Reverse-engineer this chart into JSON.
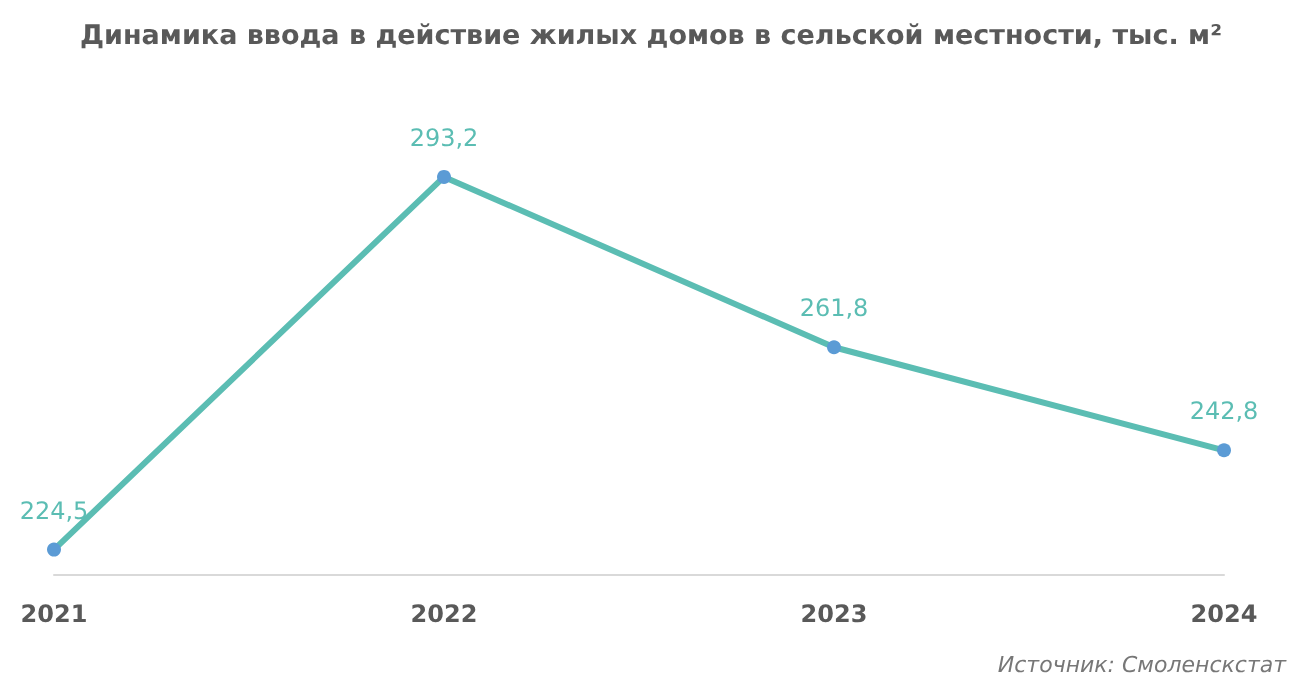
{
  "chart_data": {
    "type": "line",
    "title": "Динамика ввода в действие жилых домов в сельской местности, тыс. м²",
    "categories": [
      "2021",
      "2022",
      "2023",
      "2024"
    ],
    "series": [
      {
        "color": "#5bbdb3",
        "values": [
          224.5,
          293.2,
          261.8,
          242.8
        ],
        "value_labels": [
          "224,5",
          "293,2",
          "261,8",
          "242,8"
        ]
      }
    ],
    "marker": "circle",
    "annotations": [
      "Источник: Смоленскстат"
    ]
  }
}
